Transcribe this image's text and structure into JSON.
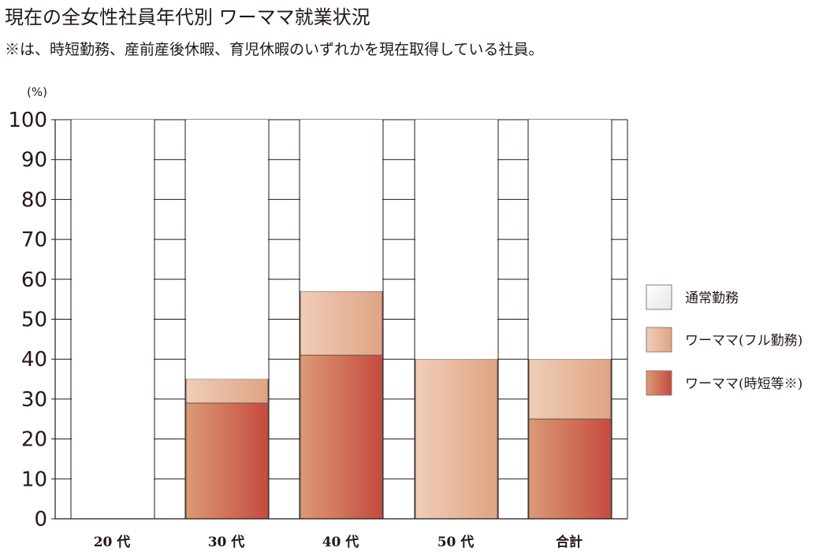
{
  "chart_data": {
    "type": "bar",
    "stacked": true,
    "title": "現在の全女性社員年代別 ワーママ就業状況",
    "subtitle": "※は、時短勤務、産前産後休暇、育児休暇のいずれかを現在取得している社員。",
    "ylabel": "(%)",
    "ylim": [
      0,
      100
    ],
    "yticks": [
      "0",
      "10",
      "20",
      "30",
      "40",
      "50",
      "60",
      "70",
      "80",
      "90",
      "100"
    ],
    "categories": [
      "20 代",
      "30 代",
      "40 代",
      "50 代",
      "合計"
    ],
    "series": [
      {
        "name": "ワーママ(時短等※)",
        "values": [
          0,
          29,
          41,
          0,
          25
        ],
        "color_light": "#dc9a76",
        "color_dark": "#c54b3f"
      },
      {
        "name": "ワーママ(フル勤務)",
        "values": [
          0,
          6,
          16,
          40,
          15
        ],
        "color_light": "#f0cdb9",
        "color_dark": "#dfa483"
      },
      {
        "name": "通常勤務",
        "values": [
          100,
          65,
          43,
          60,
          60
        ],
        "color_light": "#ffffff",
        "color_dark": "#ffffff"
      }
    ],
    "legend": {
      "position": "right",
      "order": [
        "通常勤務",
        "ワーママ(フル勤務)",
        "ワーママ(時短等※)"
      ]
    },
    "grid": true,
    "colors": {
      "axis": "#231815",
      "grid": "#231815"
    }
  }
}
